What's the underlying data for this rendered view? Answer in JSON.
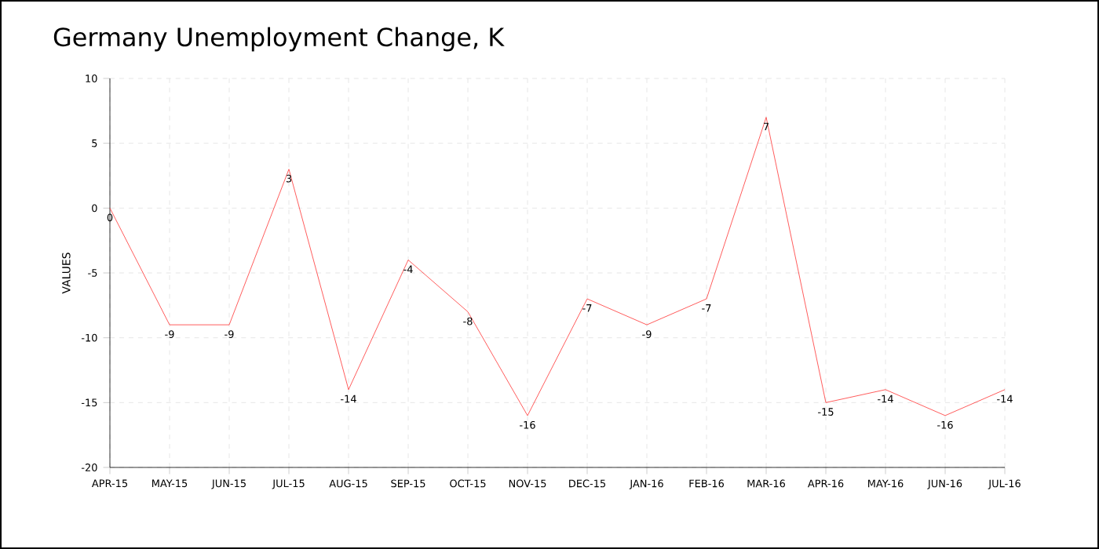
{
  "chart_data": {
    "type": "line",
    "title": "Germany Unemployment Change, K",
    "ylabel": "VALUES",
    "categories": [
      "APR-15",
      "MAY-15",
      "JUN-15",
      "JUL-15",
      "AUG-15",
      "SEP-15",
      "OCT-15",
      "NOV-15",
      "DEC-15",
      "JAN-16",
      "FEB-16",
      "MAR-16",
      "APR-16",
      "MAY-16",
      "JUN-16",
      "JUL-16"
    ],
    "series": [
      {
        "color": "#ff3333",
        "values": [
          0,
          -9,
          -9,
          3,
          -14,
          -4,
          -8,
          -16,
          -7,
          -9,
          -7,
          7,
          -15,
          -14,
          -16,
          -14
        ]
      }
    ],
    "ylim": [
      -20,
      10
    ],
    "yticks": [
      -20,
      -15,
      -10,
      -5,
      0,
      5,
      10
    ],
    "grid": true,
    "data_labels": true,
    "marker": "none",
    "line_style": "solid"
  }
}
